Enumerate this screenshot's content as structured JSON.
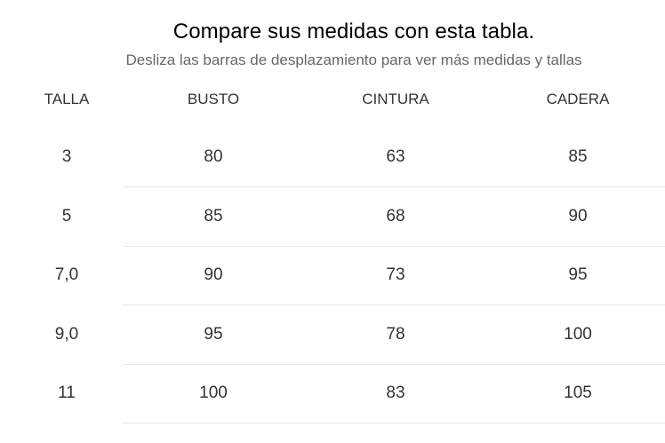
{
  "header": {
    "title": "Compare sus medidas con esta tabla.",
    "subtitle": "Desliza las barras de desplazamiento para ver más medidas y tallas"
  },
  "table": {
    "columns": [
      "TALLA",
      "BUSTO",
      "CINTURA",
      "CADERA"
    ],
    "rows": [
      [
        "3",
        "80",
        "63",
        "85"
      ],
      [
        "5",
        "85",
        "68",
        "90"
      ],
      [
        "7,0",
        "90",
        "73",
        "95"
      ],
      [
        "9,0",
        "95",
        "78",
        "100"
      ],
      [
        "11",
        "100",
        "83",
        "105"
      ]
    ]
  },
  "colors": {
    "title": "#000000",
    "subtitle": "#666666",
    "text": "#333333",
    "divider": "#e6e6e6"
  }
}
